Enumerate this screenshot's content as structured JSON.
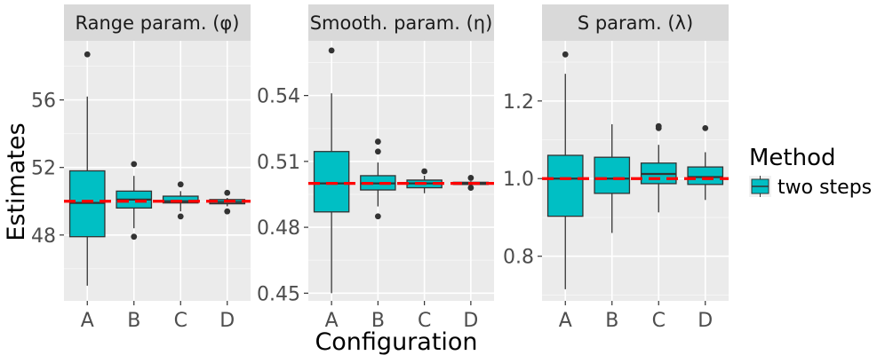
{
  "figure": {
    "ylabel": "Estimates",
    "xlabel": "Configuration",
    "legend": {
      "title": "Method",
      "label": "two steps"
    }
  },
  "colors": {
    "panel_bg": "#ebebeb",
    "strip_bg": "#d9d9d9",
    "grid_major": "#ffffff",
    "grid_minor": "#f5f5f5",
    "box_fill": "#00bfc4",
    "box_line": "#333333",
    "ref_line": "#ff0000"
  },
  "chart_data": [
    {
      "type": "box",
      "title": "Range param. (φ)",
      "categories": [
        "A",
        "B",
        "C",
        "D"
      ],
      "ylim": [
        44.1,
        59.5
      ],
      "yticks": [
        48,
        52,
        56
      ],
      "ytick_labels": [
        "48",
        "52",
        "56"
      ],
      "reference": 50,
      "boxes": [
        {
          "cat": "A",
          "lower": 45.0,
          "q1": 47.9,
          "median": 49.9,
          "q3": 51.8,
          "upper": 56.2,
          "outliers": [
            58.7
          ]
        },
        {
          "cat": "B",
          "lower": 48.4,
          "q1": 49.6,
          "median": 50.1,
          "q3": 50.6,
          "upper": 51.5,
          "outliers": [
            47.9,
            52.2
          ]
        },
        {
          "cat": "C",
          "lower": 49.4,
          "q1": 49.9,
          "median": 50.0,
          "q3": 50.3,
          "upper": 50.6,
          "outliers": [
            49.1,
            51.0
          ]
        },
        {
          "cat": "D",
          "lower": 49.7,
          "q1": 49.85,
          "median": 49.95,
          "q3": 50.1,
          "upper": 50.2,
          "outliers": [
            49.4,
            50.5
          ]
        }
      ]
    },
    {
      "type": "box",
      "title": "Smooth. param. (η)",
      "categories": [
        "A",
        "B",
        "C",
        "D"
      ],
      "ylim": [
        0.4465,
        0.5649
      ],
      "yticks": [
        0.45,
        0.48,
        0.51,
        0.54
      ],
      "ytick_labels": [
        "0.45",
        "0.48",
        "0.51",
        "0.54"
      ],
      "reference": 0.5,
      "boxes": [
        {
          "cat": "A",
          "lower": 0.45,
          "q1": 0.487,
          "median": 0.5,
          "q3": 0.5145,
          "upper": 0.541,
          "outliers": [
            0.5605
          ]
        },
        {
          "cat": "B",
          "lower": 0.4895,
          "q1": 0.497,
          "median": 0.5,
          "q3": 0.5035,
          "upper": 0.5095,
          "outliers": [
            0.485,
            0.5145,
            0.519
          ]
        },
        {
          "cat": "C",
          "lower": 0.4955,
          "q1": 0.498,
          "median": 0.5,
          "q3": 0.5015,
          "upper": 0.5035,
          "outliers": [
            0.5055
          ]
        },
        {
          "cat": "D",
          "lower": 0.499,
          "q1": 0.4995,
          "median": 0.5,
          "q3": 0.5005,
          "upper": 0.501,
          "outliers": [
            0.498,
            0.5025
          ]
        }
      ]
    },
    {
      "type": "box",
      "title": "S param. (λ)",
      "categories": [
        "A",
        "B",
        "C",
        "D"
      ],
      "ylim": [
        0.685,
        1.355
      ],
      "yticks": [
        0.8,
        1.0,
        1.2
      ],
      "ytick_labels": [
        "0.8",
        "1.0",
        "1.2"
      ],
      "reference": 1.0,
      "boxes": [
        {
          "cat": "A",
          "lower": 0.715,
          "q1": 0.903,
          "median": 1.0,
          "q3": 1.06,
          "upper": 1.27,
          "outliers": [
            1.32
          ]
        },
        {
          "cat": "B",
          "lower": 0.86,
          "q1": 0.962,
          "median": 1.0,
          "q3": 1.055,
          "upper": 1.14,
          "outliers": []
        },
        {
          "cat": "C",
          "lower": 0.913,
          "q1": 0.987,
          "median": 1.012,
          "q3": 1.04,
          "upper": 1.087,
          "outliers": [
            1.13,
            1.135
          ]
        },
        {
          "cat": "D",
          "lower": 0.945,
          "q1": 0.985,
          "median": 1.004,
          "q3": 1.03,
          "upper": 1.068,
          "outliers": [
            1.13
          ]
        }
      ]
    }
  ]
}
